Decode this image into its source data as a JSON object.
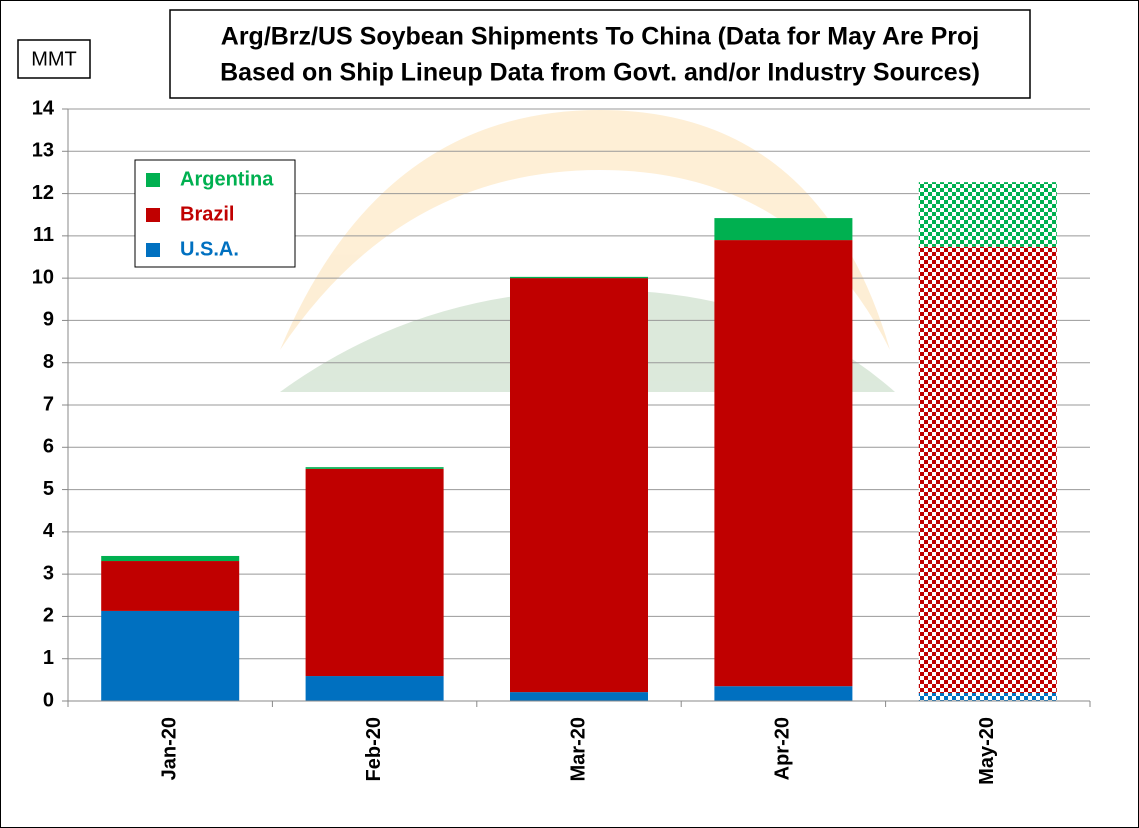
{
  "chart_data": {
    "type": "stacked_bar",
    "title": [
      "Arg/Brz/US Soybean Shipments To China (Data for May Are Proj",
      "Based on Ship Lineup Data from Govt. and/or Industry Sources)"
    ],
    "y_label": "MMT",
    "categories": [
      "Jan-20",
      "Feb-20",
      "Mar-20",
      "Apr-20",
      "May-20"
    ],
    "patterned": [
      false,
      false,
      false,
      false,
      true
    ],
    "series": [
      {
        "name": "U.S.A.",
        "color": "#0070c0",
        "values": [
          2.13,
          0.59,
          0.21,
          0.35,
          0.19
        ]
      },
      {
        "name": "Brazil",
        "color": "#c00000",
        "values": [
          1.18,
          4.9,
          9.79,
          10.55,
          10.55
        ]
      },
      {
        "name": "Argentina",
        "color": "#00b050",
        "values": [
          0.12,
          0.04,
          0.03,
          0.52,
          1.53
        ]
      }
    ],
    "ylim": [
      0,
      14
    ],
    "yticks": [
      0,
      1,
      2,
      3,
      4,
      5,
      6,
      7,
      8,
      9,
      10,
      11,
      12,
      13,
      14
    ],
    "grid": true
  }
}
